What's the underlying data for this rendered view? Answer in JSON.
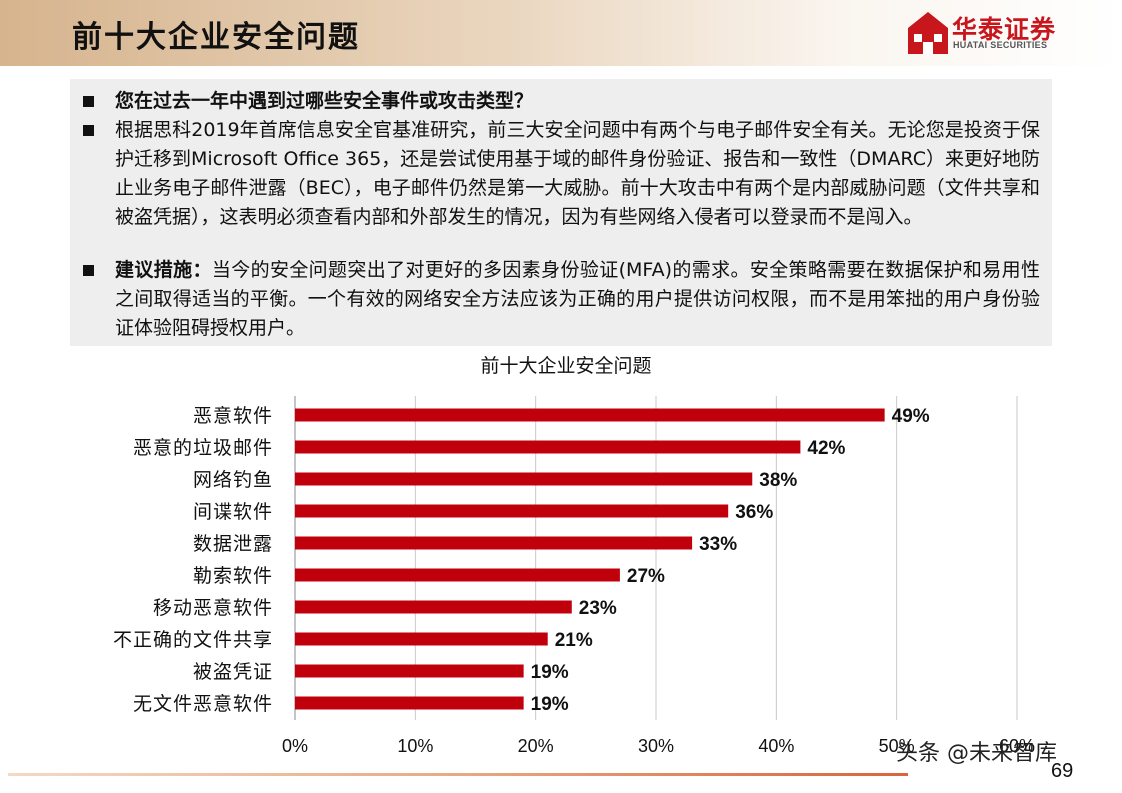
{
  "page": {
    "title": "前十大企业安全问题",
    "logo_text": "华泰证券",
    "logo_sub": "HUATAI SECURITIES",
    "page_number": "69",
    "watermark": "头条 @未来智库"
  },
  "paragraphs": {
    "p1": "您在过去一年中遇到过哪些安全事件或攻击类型？",
    "p2": "根据思科2019年首席信息安全官基准研究，前三大安全问题中有两个与电子邮件安全有关。无论您是投资于保护迁移到Microsoft Office 365，还是尝试使用基于域的邮件身份验证、报告和一致性（DMARC）来更好地防止业务电子邮件泄露（BEC），电子邮件仍然是第一大威胁。前十大攻击中有两个是内部威胁问题（文件共享和被盗凭据），这表明必须查看内部和外部发生的情况，因为有些网络入侵者可以登录而不是闯入。",
    "p3_bold": "建议措施：",
    "p3": "当今的安全问题突出了对更好的多因素身份验证(MFA)的需求。安全策略需要在数据保护和易用性之间取得适当的平衡。一个有效的网络安全方法应该为正确的用户提供访问权限，而不是用笨拙的用户身份验证体验阻碍授权用户。"
  },
  "chart_data": {
    "type": "bar",
    "orientation": "horizontal",
    "title": "前十大企业安全问题",
    "categories": [
      "恶意软件",
      "恶意的垃圾邮件",
      "网络钓鱼",
      "间谍软件",
      "数据泄露",
      "勒索软件",
      "移动恶意软件",
      "不正确的文件共享",
      "被盗凭证",
      "无文件恶意软件"
    ],
    "values": [
      49,
      42,
      38,
      36,
      33,
      27,
      23,
      21,
      19,
      19
    ],
    "value_labels": [
      "49%",
      "42%",
      "38%",
      "36%",
      "33%",
      "27%",
      "23%",
      "21%",
      "19%",
      "19%"
    ],
    "xticks": [
      "0%",
      "10%",
      "20%",
      "30%",
      "40%",
      "50%",
      "60%"
    ],
    "xlim": [
      0,
      60
    ],
    "grid": true,
    "bar_color": "#c0000b"
  }
}
